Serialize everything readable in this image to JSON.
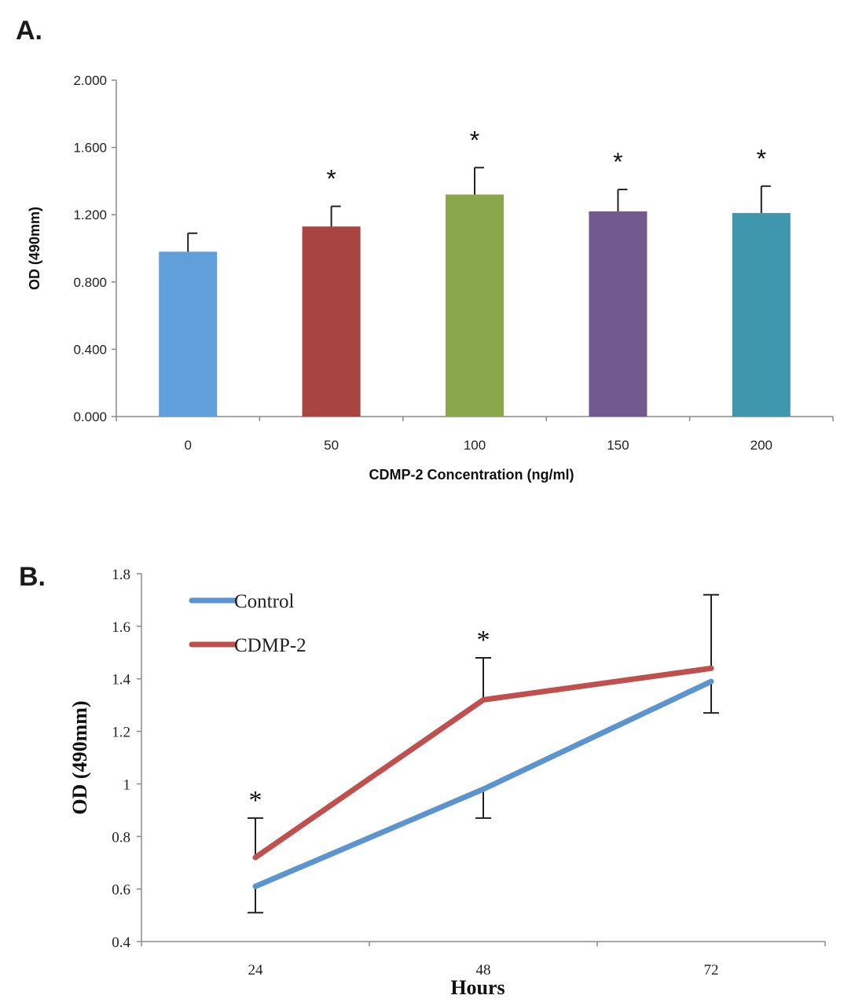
{
  "chart_data": [
    {
      "panel": "A.",
      "type": "bar",
      "categories": [
        "0",
        "50",
        "100",
        "150",
        "200"
      ],
      "values": [
        0.98,
        1.13,
        1.32,
        1.22,
        1.21
      ],
      "errors": [
        0.11,
        0.12,
        0.16,
        0.13,
        0.16
      ],
      "significant": [
        "",
        "*",
        "*",
        "*",
        "*"
      ],
      "colors": [
        "#609fd9",
        "#a84442",
        "#8aa84b",
        "#735a8e",
        "#3f97ad"
      ],
      "ylabel": "OD (490mm)",
      "xlabel": "CDMP-2 Concentration (ng/ml)",
      "ylim": [
        0,
        2.0
      ],
      "yticks": [
        "0.000",
        "0.400",
        "0.800",
        "1.200",
        "1.600",
        "2.000"
      ],
      "ytick_values": [
        0,
        0.4,
        0.8,
        1.2,
        1.6,
        2.0
      ],
      "grid": false
    },
    {
      "panel": "B.",
      "type": "line",
      "x": [
        "24",
        "48",
        "72"
      ],
      "series": [
        {
          "name": "Control",
          "values": [
            0.61,
            0.98,
            1.39
          ],
          "errors": [
            0.1,
            0.11,
            0.12
          ],
          "color": "#5b94cf"
        },
        {
          "name": "CDMP-2",
          "values": [
            0.72,
            1.32,
            1.44
          ],
          "errors": [
            0.15,
            0.16,
            0.28
          ],
          "color": "#c0504d"
        }
      ],
      "significant": [
        "*",
        "*",
        ""
      ],
      "ylabel": "OD (490mm)",
      "xlabel": "Hours",
      "ylim": [
        0.4,
        1.8
      ],
      "yticks": [
        "0.4",
        "0.6",
        "0.8",
        "1",
        "1.2",
        "1.4",
        "1.6",
        "1.8"
      ],
      "ytick_values": [
        0.4,
        0.6,
        0.8,
        1.0,
        1.2,
        1.4,
        1.6,
        1.8
      ],
      "legend": "top-left",
      "grid": false
    }
  ]
}
